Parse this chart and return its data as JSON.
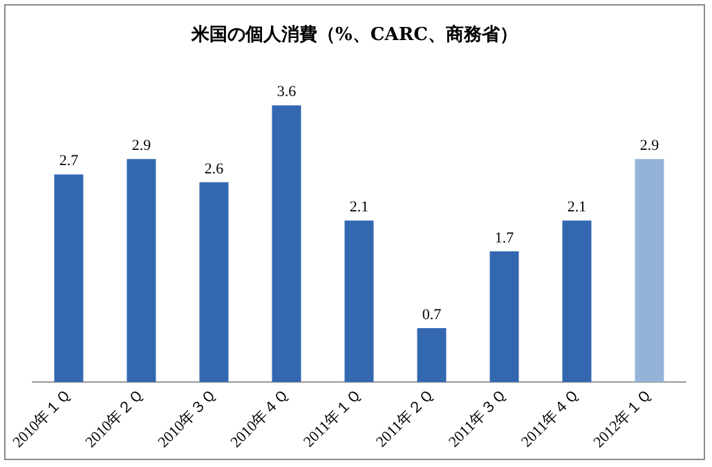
{
  "chart_data": {
    "type": "bar",
    "title": "米国の個人消費（%、CARC、商務省）",
    "categories": [
      "2010年１Ｑ",
      "2010年２Ｑ",
      "2010年３Ｑ",
      "2010年４Ｑ",
      "2011年１Ｑ",
      "2011年２Ｑ",
      "2011年３Ｑ",
      "2011年４Ｑ",
      "2012年１Ｑ"
    ],
    "values": [
      2.7,
      2.9,
      2.6,
      3.6,
      2.1,
      0.7,
      1.7,
      2.1,
      2.9
    ],
    "colors": [
      "#3368b0",
      "#3368b0",
      "#3368b0",
      "#3368b0",
      "#3368b0",
      "#3368b0",
      "#3368b0",
      "#3368b0",
      "#95b3d7"
    ],
    "data_labels": true,
    "grid": false,
    "legend": false
  }
}
